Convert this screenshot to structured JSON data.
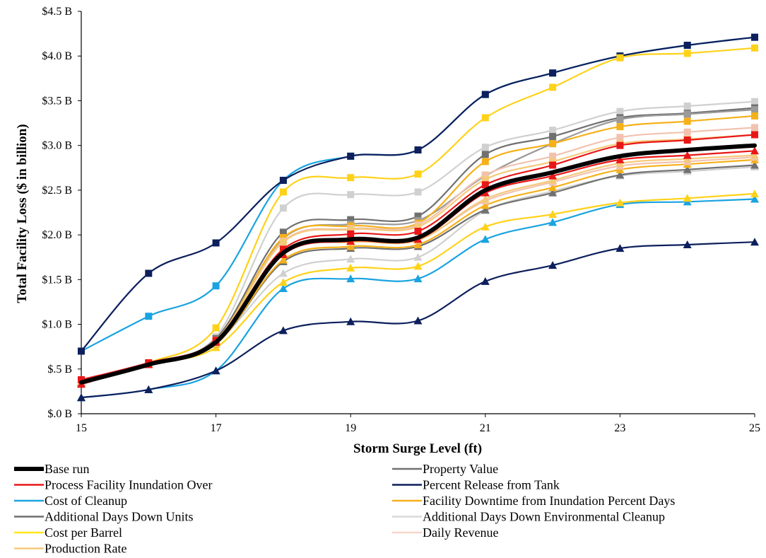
{
  "chart_data": {
    "type": "line",
    "title": "",
    "xlabel": "Storm Surge Level (ft)",
    "ylabel": "Total Facility Loss ($ in billion)",
    "x": [
      15,
      16,
      17,
      18,
      19,
      20,
      21,
      22,
      23,
      24,
      25
    ],
    "xticks": [
      15,
      17,
      19,
      21,
      23,
      25
    ],
    "xtick_labels": [
      "15",
      "17",
      "19",
      "21",
      "23",
      "25"
    ],
    "xlim": [
      15,
      25
    ],
    "ylim": [
      0,
      4.5
    ],
    "yticks": [
      0,
      0.5,
      1.0,
      1.5,
      2.0,
      2.5,
      3.0,
      3.5,
      4.0,
      4.5
    ],
    "ytick_labels": [
      "$.0 B",
      "$.5 B",
      "$1.0 B",
      "$1.5 B",
      "$2.0 B",
      "$2.5 B",
      "$3.0 B",
      "$3.5 B",
      "$4.0 B",
      "$4.5 B"
    ],
    "grid": false,
    "legend_position": "bottom",
    "series": [
      {
        "name": "Cost of Cleanup",
        "color": "#1aa3e0",
        "marker": "square",
        "values": [
          0.7,
          1.09,
          1.43,
          2.61,
          2.88,
          2.95,
          3.57,
          3.81,
          4.0,
          4.12,
          4.21
        ]
      },
      {
        "name": "Cost of Cleanup",
        "color": "#1aa3e0",
        "marker": "triangle",
        "values": [
          0.18,
          0.27,
          0.48,
          1.4,
          1.51,
          1.51,
          1.95,
          2.14,
          2.34,
          2.37,
          2.4
        ]
      },
      {
        "name": "Percent Release from Tank",
        "color": "#0d1f5c",
        "marker": "square",
        "values": [
          0.7,
          1.57,
          1.91,
          2.61,
          2.88,
          2.95,
          3.57,
          3.81,
          4.0,
          4.12,
          4.21
        ]
      },
      {
        "name": "Percent Release from Tank",
        "color": "#0d1f5c",
        "marker": "triangle",
        "values": [
          0.18,
          0.27,
          0.48,
          0.93,
          1.03,
          1.04,
          1.48,
          1.66,
          1.85,
          1.89,
          1.92
        ]
      },
      {
        "name": "Cost per Barrel",
        "color": "#ffd21a",
        "marker": "square",
        "values": [
          0.36,
          0.57,
          0.96,
          2.48,
          2.64,
          2.68,
          3.31,
          3.65,
          3.98,
          4.03,
          4.09
        ]
      },
      {
        "name": "Cost per Barrel",
        "color": "#ffd21a",
        "marker": "triangle",
        "values": [
          0.36,
          0.55,
          0.74,
          1.47,
          1.63,
          1.65,
          2.09,
          2.23,
          2.36,
          2.41,
          2.46
        ]
      },
      {
        "name": "Additional Days Down Environmental Cleanup",
        "color": "#d0d0d0",
        "marker": "square",
        "values": [
          0.36,
          0.56,
          0.86,
          2.3,
          2.45,
          2.48,
          2.98,
          3.17,
          3.38,
          3.44,
          3.49
        ]
      },
      {
        "name": "Additional Days Down Environmental Cleanup",
        "color": "#d0d0d0",
        "marker": "triangle",
        "values": [
          0.36,
          0.55,
          0.8,
          1.57,
          1.73,
          1.75,
          2.27,
          2.49,
          2.66,
          2.71,
          2.76
        ]
      },
      {
        "name": "Property Value",
        "color": "#707070",
        "marker": "square",
        "values": [
          0.37,
          0.56,
          0.84,
          2.03,
          2.17,
          2.21,
          2.9,
          3.1,
          3.31,
          3.36,
          3.42
        ]
      },
      {
        "name": "Property Value",
        "color": "#707070",
        "marker": "triangle",
        "values": [
          0.35,
          0.55,
          0.78,
          1.7,
          1.85,
          1.87,
          2.28,
          2.47,
          2.67,
          2.73,
          2.78
        ]
      },
      {
        "name": "Additional Days Down Units",
        "color": "#9a9a9a",
        "marker": "square",
        "values": [
          0.36,
          0.56,
          0.82,
          1.96,
          2.12,
          2.16,
          2.66,
          3.02,
          3.29,
          3.35,
          3.4
        ]
      },
      {
        "name": "Facility Downtime from Inundation Percent Days",
        "color": "#f5b11a",
        "marker": "square",
        "values": [
          0.36,
          0.56,
          0.82,
          1.97,
          2.1,
          2.13,
          2.82,
          3.02,
          3.21,
          3.27,
          3.33
        ]
      },
      {
        "name": "Facility Downtime from Inundation Percent Days",
        "color": "#f5b11a",
        "marker": "triangle",
        "values": [
          0.36,
          0.55,
          0.78,
          1.72,
          1.87,
          1.89,
          2.33,
          2.53,
          2.73,
          2.79,
          2.84
        ]
      },
      {
        "name": "Daily Revenue",
        "color": "#f2c2b0",
        "marker": "square",
        "values": [
          0.36,
          0.56,
          0.82,
          1.93,
          2.07,
          2.11,
          2.67,
          2.88,
          3.09,
          3.15,
          3.2
        ]
      },
      {
        "name": "Daily Revenue",
        "color": "#f2c2b0",
        "marker": "triangle",
        "values": [
          0.36,
          0.55,
          0.79,
          1.79,
          1.93,
          1.95,
          2.38,
          2.59,
          2.77,
          2.82,
          2.87
        ]
      },
      {
        "name": "Production Rate",
        "color": "#f5c97a",
        "marker": "square",
        "values": [
          0.36,
          0.56,
          0.82,
          1.92,
          2.06,
          2.09,
          2.62,
          2.82,
          3.02,
          3.07,
          3.12
        ]
      },
      {
        "name": "Production Rate",
        "color": "#f5c97a",
        "marker": "triangle",
        "values": [
          0.36,
          0.55,
          0.79,
          1.8,
          1.92,
          1.94,
          2.4,
          2.61,
          2.8,
          2.85,
          2.89
        ]
      },
      {
        "name": "Process Facility Inundation Over",
        "color": "#e81717",
        "marker": "square",
        "values": [
          0.38,
          0.57,
          0.82,
          1.84,
          2.01,
          2.04,
          2.56,
          2.78,
          3.0,
          3.06,
          3.12
        ]
      },
      {
        "name": "Process Facility Inundation Over",
        "color": "#e81717",
        "marker": "triangle",
        "values": [
          0.33,
          0.55,
          0.8,
          1.78,
          1.93,
          1.95,
          2.47,
          2.66,
          2.84,
          2.89,
          2.94
        ]
      },
      {
        "name": "Base run",
        "color": "#000000",
        "marker": "none",
        "bold": true,
        "values": [
          0.35,
          0.55,
          0.8,
          1.8,
          1.95,
          1.97,
          2.5,
          2.7,
          2.88,
          2.95,
          3.0
        ]
      }
    ],
    "legend": {
      "left": [
        "Base run",
        "Process Facility Inundation Over",
        "Cost of Cleanup",
        "Additional Days Down Units",
        "Cost per Barrel",
        "Production Rate"
      ],
      "right": [
        "Property Value",
        "Percent Release from Tank",
        "Facility Downtime from Inundation Percent Days",
        "Additional Days Down Environmental Cleanup",
        "Daily Revenue"
      ],
      "colors": {
        "Base run": "#000000",
        "Process Facility Inundation Over": "#e81717",
        "Cost of Cleanup": "#1aa3e0",
        "Additional Days Down Units": "#6e6e6e",
        "Cost per Barrel": "#ffe51a",
        "Production Rate": "#f5c97a",
        "Property Value": "#707070",
        "Percent Release from Tank": "#0d1f5c",
        "Facility Downtime from Inundation Percent Days": "#f5b11a",
        "Additional Days Down Environmental Cleanup": "#d8d8d8",
        "Daily Revenue": "#f7d6c8"
      }
    }
  }
}
